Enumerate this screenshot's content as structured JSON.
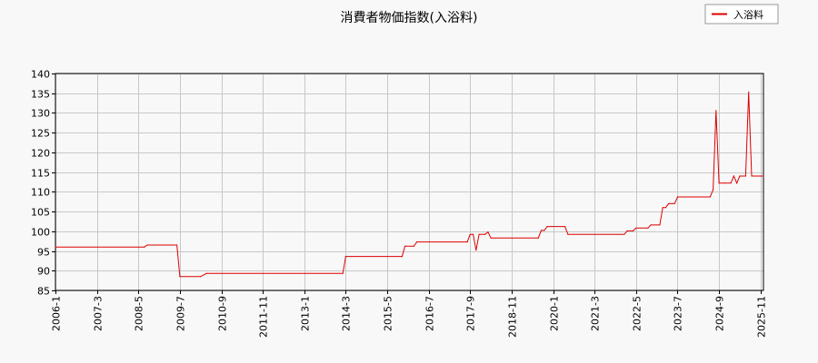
{
  "chart_data": {
    "type": "line",
    "title": "消費者物価指数(入浴料)",
    "xlabel": "",
    "ylabel": "",
    "ylim": [
      85,
      140
    ],
    "yticks": [
      85,
      90,
      95,
      100,
      105,
      110,
      115,
      120,
      125,
      130,
      135,
      140
    ],
    "xlim": [
      "2006-01",
      "2025-12"
    ],
    "xticks": [
      "2006-1",
      "2007-3",
      "2008-5",
      "2009-7",
      "2010-9",
      "2011-11",
      "2013-1",
      "2014-3",
      "2015-5",
      "2016-7",
      "2017-9",
      "2018-11",
      "2020-1",
      "2021-3",
      "2022-5",
      "2023-7",
      "2024-9",
      "2025-11"
    ],
    "grid": true,
    "legend": "top-right",
    "series": [
      {
        "name": "入浴料",
        "color": "#dd0000",
        "points": [
          [
            "2006-01",
            96
          ],
          [
            "2008-07",
            96
          ],
          [
            "2008-08",
            96.5
          ],
          [
            "2009-06",
            96.5
          ],
          [
            "2009-07",
            88.5
          ],
          [
            "2010-02",
            88.5
          ],
          [
            "2010-04",
            89.3
          ],
          [
            "2014-02",
            89.3
          ],
          [
            "2014-03",
            93.6
          ],
          [
            "2015-10",
            93.6
          ],
          [
            "2015-11",
            96.2
          ],
          [
            "2016-02",
            96.2
          ],
          [
            "2016-03",
            97.3
          ],
          [
            "2017-08",
            97.3
          ],
          [
            "2017-09",
            99.2
          ],
          [
            "2017-10",
            99.2
          ],
          [
            "2017-11",
            95.2
          ],
          [
            "2017-12",
            99.2
          ],
          [
            "2018-02",
            99.2
          ],
          [
            "2018-03",
            99.8
          ],
          [
            "2018-04",
            98.3
          ],
          [
            "2019-08",
            98.3
          ],
          [
            "2019-09",
            100.2
          ],
          [
            "2019-10",
            100.2
          ],
          [
            "2019-11",
            101.2
          ],
          [
            "2020-05",
            101.2
          ],
          [
            "2020-06",
            99.2
          ],
          [
            "2022-01",
            99.2
          ],
          [
            "2022-02",
            100.1
          ],
          [
            "2022-04",
            100.1
          ],
          [
            "2022-05",
            100.8
          ],
          [
            "2022-09",
            100.8
          ],
          [
            "2022-10",
            101.6
          ],
          [
            "2023-01",
            101.6
          ],
          [
            "2023-02",
            106
          ],
          [
            "2023-03",
            106
          ],
          [
            "2023-04",
            107
          ],
          [
            "2023-06",
            107
          ],
          [
            "2023-07",
            108.7
          ],
          [
            "2024-06",
            108.7
          ],
          [
            "2024-07",
            110.5
          ],
          [
            "2024-08",
            130.6
          ],
          [
            "2024-09",
            112.2
          ],
          [
            "2024-11",
            112.2
          ],
          [
            "2025-01",
            112.2
          ],
          [
            "2025-02",
            114
          ],
          [
            "2025-03",
            112.2
          ],
          [
            "2025-04",
            114
          ],
          [
            "2025-06",
            114
          ],
          [
            "2025-07",
            135.3
          ],
          [
            "2025-08",
            114
          ],
          [
            "2025-12",
            114
          ]
        ]
      }
    ]
  }
}
